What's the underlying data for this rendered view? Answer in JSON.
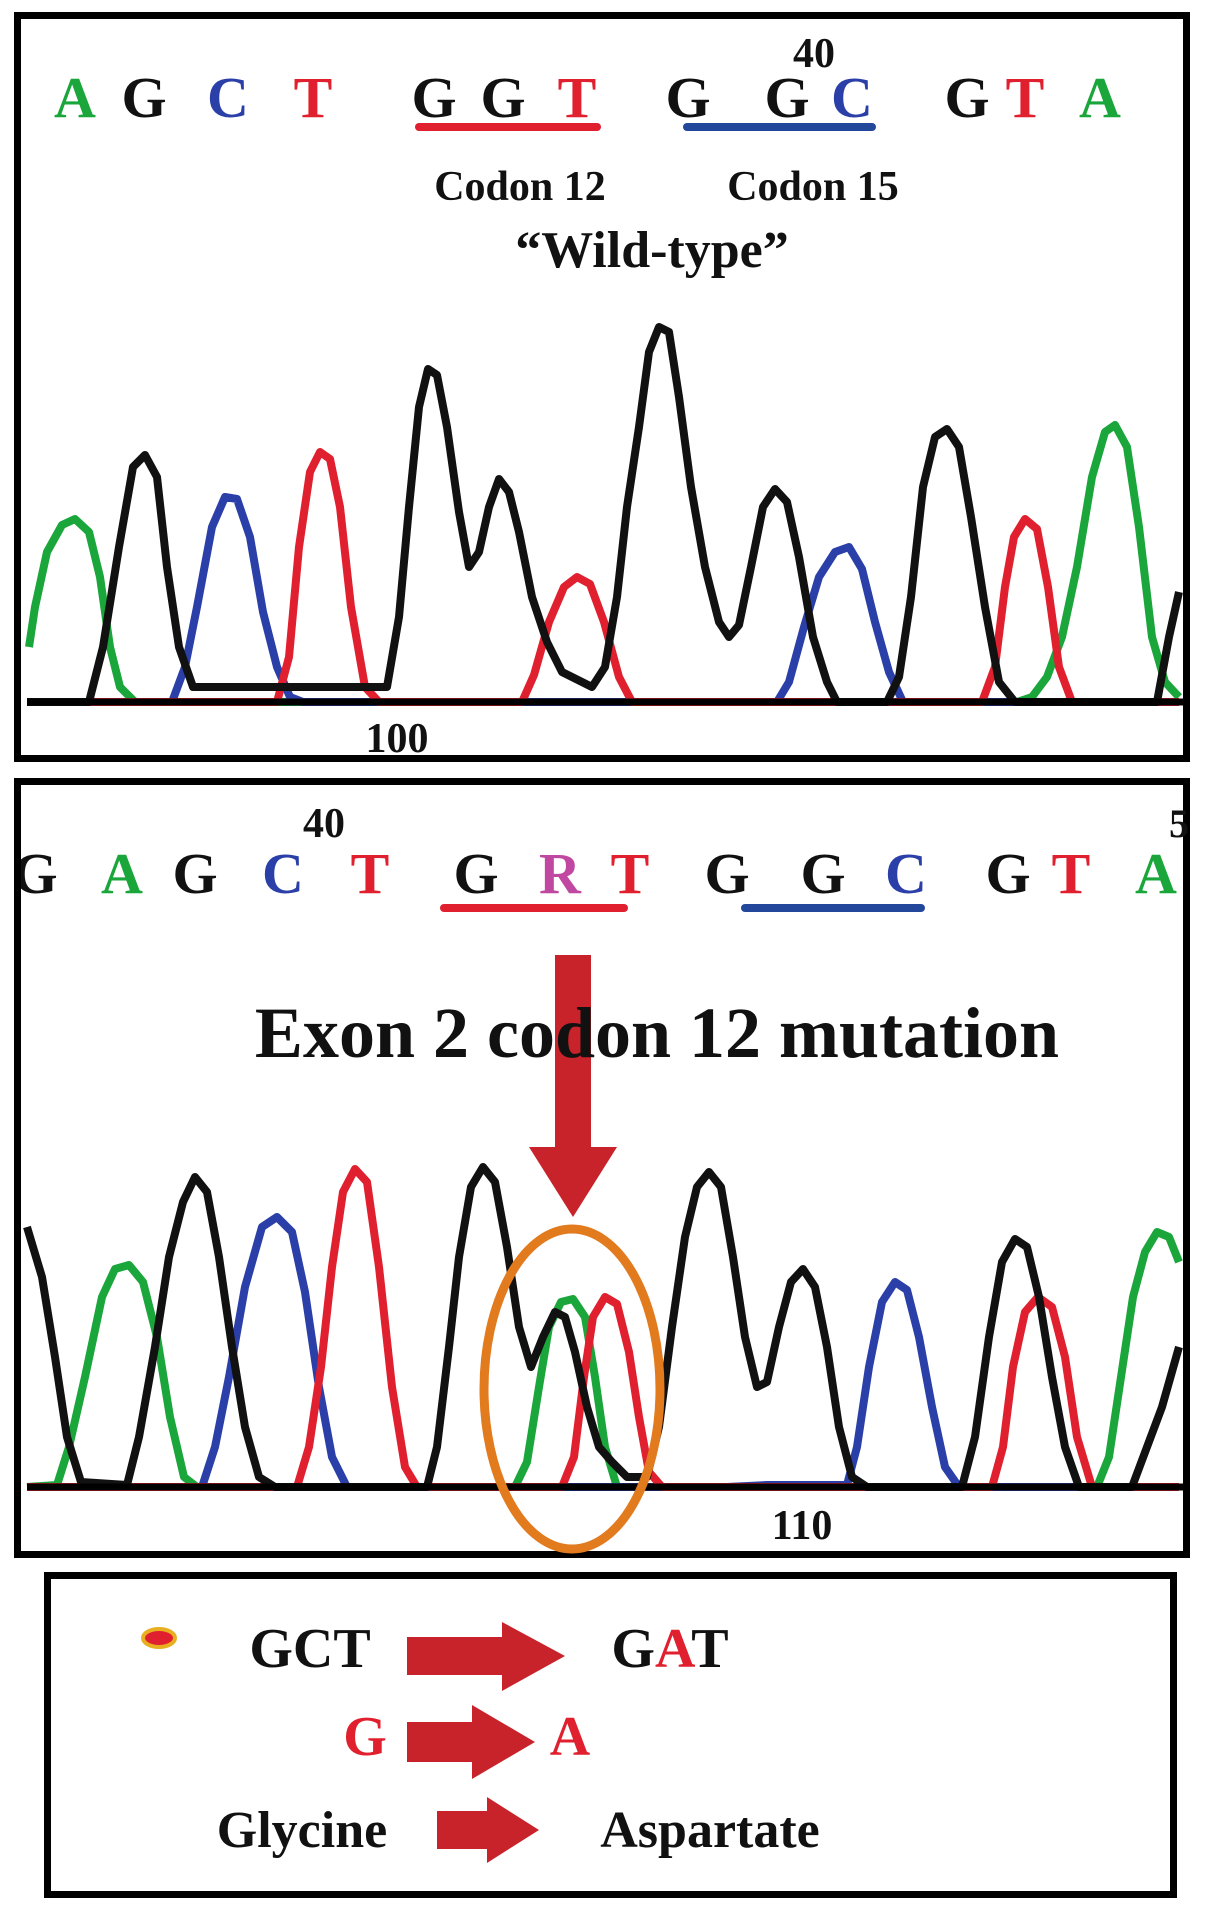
{
  "colors": {
    "A": "#1aa63a",
    "C": "#2b3fa8",
    "G": "#111111",
    "T": "#e0202e",
    "R": "#c048a0",
    "codon12_underline": "#e0202e",
    "codon15_underline": "#22479b",
    "mutation_arrow": "#c8232a",
    "highlight_ellipse": "#e27a1e"
  },
  "wild_type": {
    "position_label": "40",
    "sequence": [
      "A",
      "G",
      "C",
      "T",
      "G",
      "G",
      "T",
      "G",
      "G",
      "C",
      "G",
      "T",
      "A"
    ],
    "codon12_label": "Codon 12",
    "codon15_label": "Codon 15",
    "title": "“Wild-type”",
    "scale_label": "100"
  },
  "mutant": {
    "position_label": "40",
    "edge_label": "5",
    "sequence": [
      "G",
      "A",
      "G",
      "C",
      "T",
      "G",
      "R",
      "T",
      "G",
      "G",
      "C",
      "G",
      "T",
      "A"
    ],
    "title": "Exon 2 codon 12 mutation",
    "scale_label": "110"
  },
  "legend": {
    "row1_from": "GCT",
    "row1_to_prefix": "G",
    "row1_to_mut": "A",
    "row1_to_suffix": "T",
    "row2_from": "G",
    "row2_to": "A",
    "row3_from": "Glycine",
    "row3_to": "Aspartate"
  }
}
